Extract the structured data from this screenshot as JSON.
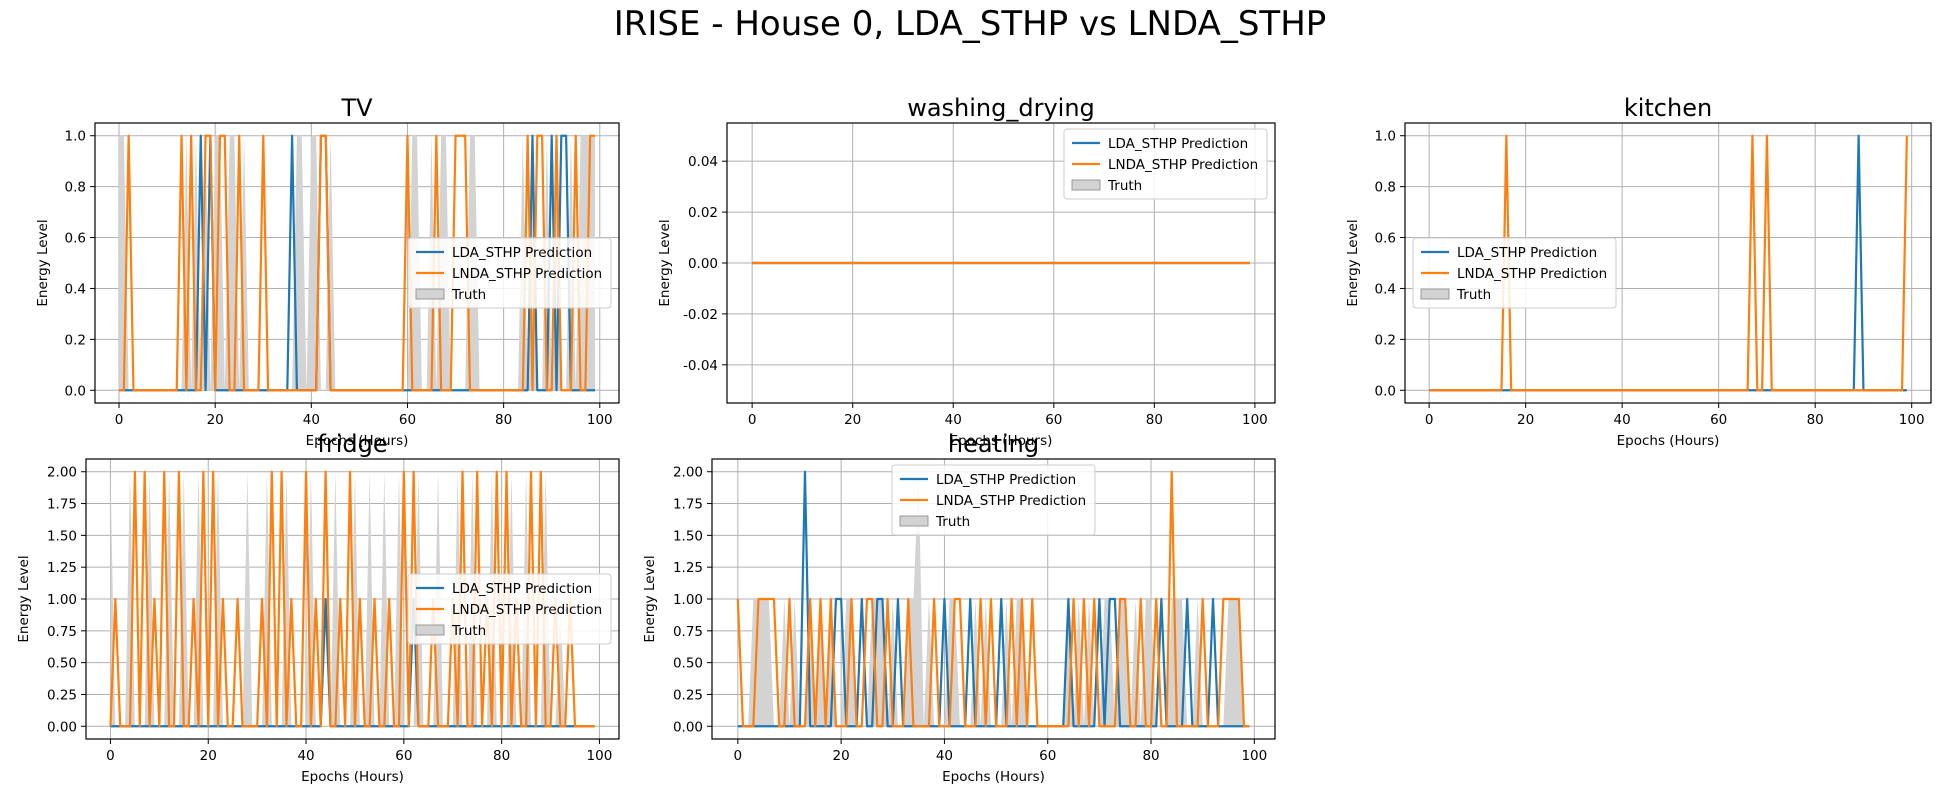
{
  "figure": {
    "title": "IRISE - House 0, LDA_STHP vs LNDA_STHP"
  },
  "colors": {
    "lda": "#1f77b4",
    "lnda": "#ff7f0e",
    "truth_fill": "#d3d3d3",
    "grid": "#b0b0b0"
  },
  "chart_data": [
    {
      "type": "line",
      "title": "TV",
      "xlabel": "Epochs (Hours)",
      "ylabel": "Energy Level",
      "xlim": [
        -5,
        104
      ],
      "ylim": [
        -0.05,
        1.05
      ],
      "xticks": [
        0,
        20,
        40,
        60,
        80,
        100
      ],
      "yticks": [
        0.0,
        0.2,
        0.4,
        0.6,
        0.8,
        1.0
      ],
      "grid": true,
      "legend": "center-right",
      "series": [
        {
          "name": "LDA_STHP Prediction",
          "kind": "line",
          "on": [
            17,
            19,
            36,
            42,
            43,
            86,
            90,
            92,
            93
          ]
        },
        {
          "name": "LNDA_STHP Prediction",
          "kind": "line",
          "on": [
            2,
            13,
            15,
            18,
            19,
            21,
            22,
            25,
            30,
            42,
            43,
            60,
            66,
            70,
            71,
            72,
            85,
            87,
            88,
            91,
            95,
            98,
            99
          ]
        },
        {
          "name": "Truth",
          "kind": "area",
          "on": [
            0,
            1,
            14,
            16,
            18,
            20,
            21,
            23,
            24,
            26,
            37,
            38,
            40,
            41,
            44,
            61,
            62,
            65,
            67,
            68,
            73,
            74,
            84,
            86,
            89,
            91,
            94,
            96,
            97,
            98,
            99
          ]
        }
      ]
    },
    {
      "type": "line",
      "title": "washing_drying",
      "xlabel": "Epochs (Hours)",
      "ylabel": "Energy Level",
      "xlim": [
        -5,
        104
      ],
      "ylim": [
        -0.055,
        0.055
      ],
      "xticks": [
        0,
        20,
        40,
        60,
        80,
        100
      ],
      "yticks": [
        -0.04,
        -0.02,
        0.0,
        0.02,
        0.04
      ],
      "grid": true,
      "legend": "upper-right",
      "series": [
        {
          "name": "LDA_STHP Prediction",
          "kind": "line",
          "on": []
        },
        {
          "name": "LNDA_STHP Prediction",
          "kind": "line",
          "on": []
        },
        {
          "name": "Truth",
          "kind": "area",
          "on": []
        }
      ]
    },
    {
      "type": "line",
      "title": "kitchen",
      "xlabel": "Epochs (Hours)",
      "ylabel": "Energy Level",
      "xlim": [
        -5,
        104
      ],
      "ylim": [
        -0.05,
        1.05
      ],
      "xticks": [
        0,
        20,
        40,
        60,
        80,
        100
      ],
      "yticks": [
        0.0,
        0.2,
        0.4,
        0.6,
        0.8,
        1.0
      ],
      "grid": true,
      "legend": "center-left",
      "series": [
        {
          "name": "LDA_STHP Prediction",
          "kind": "line",
          "on": [
            89
          ]
        },
        {
          "name": "LNDA_STHP Prediction",
          "kind": "line",
          "on": [
            16,
            67,
            70,
            99
          ]
        },
        {
          "name": "Truth",
          "kind": "area",
          "on": []
        }
      ]
    },
    {
      "type": "line",
      "title": "fridge",
      "xlabel": "Epochs (Hours)",
      "ylabel": "Energy Level",
      "xlim": [
        -5,
        104
      ],
      "ylim": [
        -0.1,
        2.1
      ],
      "xticks": [
        0,
        20,
        40,
        60,
        80,
        100
      ],
      "yticks": [
        0.0,
        0.25,
        0.5,
        0.75,
        1.0,
        1.25,
        1.5,
        1.75,
        2.0
      ],
      "grid": true,
      "legend": "center-right",
      "series": [
        {
          "name": "LDA_STHP Prediction",
          "kind": "line",
          "on": [
            44,
            62
          ]
        },
        {
          "name": "LNDA_STHP Prediction",
          "kind": "line",
          "points": [
            [
              1,
              1
            ],
            [
              5,
              2
            ],
            [
              7,
              2
            ],
            [
              9,
              1
            ],
            [
              11,
              2
            ],
            [
              14,
              2
            ],
            [
              17,
              1
            ],
            [
              19,
              2
            ],
            [
              21,
              2
            ],
            [
              23,
              1
            ],
            [
              26,
              1
            ],
            [
              31,
              1
            ],
            [
              33,
              2
            ],
            [
              35,
              2
            ],
            [
              37,
              1
            ],
            [
              40,
              2
            ],
            [
              42,
              1
            ],
            [
              44,
              2
            ],
            [
              47,
              1
            ],
            [
              49,
              2
            ],
            [
              51,
              1
            ],
            [
              54,
              1
            ],
            [
              57,
              1
            ],
            [
              60,
              2
            ],
            [
              62,
              2
            ],
            [
              66,
              1
            ],
            [
              70,
              1
            ],
            [
              72,
              2
            ],
            [
              75,
              2
            ],
            [
              77,
              1
            ],
            [
              79,
              2
            ],
            [
              81,
              2
            ],
            [
              83,
              1
            ],
            [
              86,
              2
            ],
            [
              88,
              2
            ],
            [
              91,
              1
            ],
            [
              94,
              1
            ]
          ]
        },
        {
          "name": "Truth",
          "kind": "area",
          "points": [
            [
              0,
              2
            ],
            [
              4,
              2
            ],
            [
              8,
              2
            ],
            [
              12,
              2
            ],
            [
              15,
              2
            ],
            [
              18,
              2
            ],
            [
              22,
              2
            ],
            [
              28,
              2
            ],
            [
              32,
              2
            ],
            [
              36,
              2
            ],
            [
              41,
              2
            ],
            [
              46,
              2
            ],
            [
              50,
              2
            ],
            [
              53,
              2
            ],
            [
              56,
              2
            ],
            [
              59,
              2
            ],
            [
              63,
              2
            ],
            [
              67,
              2
            ],
            [
              71,
              2
            ],
            [
              74,
              2
            ],
            [
              78,
              2
            ],
            [
              82,
              2
            ],
            [
              85,
              2
            ],
            [
              89,
              2
            ],
            [
              92,
              1
            ]
          ]
        }
      ]
    },
    {
      "type": "line",
      "title": "heating",
      "xlabel": "Epochs (Hours)",
      "ylabel": "Energy Level",
      "xlim": [
        -5,
        104
      ],
      "ylim": [
        -0.1,
        2.1
      ],
      "xticks": [
        0,
        20,
        40,
        60,
        80,
        100
      ],
      "yticks": [
        0.0,
        0.25,
        0.5,
        0.75,
        1.0,
        1.25,
        1.5,
        1.75,
        2.0
      ],
      "grid": true,
      "legend": "upper-center",
      "series": [
        {
          "name": "LDA_STHP Prediction",
          "kind": "line",
          "points": [
            [
              13,
              2
            ],
            [
              19,
              1
            ],
            [
              20,
              1
            ],
            [
              24,
              1
            ],
            [
              27,
              1
            ],
            [
              28,
              1
            ],
            [
              31,
              1
            ],
            [
              40,
              1
            ],
            [
              45,
              1
            ],
            [
              51,
              1
            ],
            [
              64,
              1
            ],
            [
              70,
              1
            ],
            [
              72,
              1
            ],
            [
              73,
              1
            ],
            [
              82,
              1
            ],
            [
              87,
              1
            ],
            [
              92,
              1
            ]
          ]
        },
        {
          "name": "LNDA_STHP Prediction",
          "kind": "line",
          "points": [
            [
              0,
              1
            ],
            [
              4,
              1
            ],
            [
              5,
              1
            ],
            [
              6,
              1
            ],
            [
              7,
              1
            ],
            [
              10,
              1
            ],
            [
              14,
              1
            ],
            [
              16,
              1
            ],
            [
              18,
              1
            ],
            [
              22,
              1
            ],
            [
              25,
              1
            ],
            [
              26,
              1
            ],
            [
              29,
              1
            ],
            [
              33,
              1
            ],
            [
              38,
              1
            ],
            [
              42,
              1
            ],
            [
              43,
              1
            ],
            [
              47,
              1
            ],
            [
              49,
              1
            ],
            [
              53,
              1
            ],
            [
              55,
              1
            ],
            [
              57,
              1
            ],
            [
              65,
              1
            ],
            [
              67,
              1
            ],
            [
              69,
              1
            ],
            [
              74,
              1
            ],
            [
              75,
              1
            ],
            [
              78,
              1
            ],
            [
              81,
              1
            ],
            [
              84,
              2
            ],
            [
              90,
              1
            ],
            [
              94,
              1
            ],
            [
              95,
              1
            ],
            [
              96,
              1
            ],
            [
              97,
              1
            ]
          ]
        },
        {
          "name": "Truth",
          "kind": "area",
          "points": [
            [
              3,
              1
            ],
            [
              4,
              1
            ],
            [
              5,
              1
            ],
            [
              6,
              1
            ],
            [
              9,
              1
            ],
            [
              11,
              1
            ],
            [
              14,
              1
            ],
            [
              16,
              1
            ],
            [
              18,
              1
            ],
            [
              21,
              1
            ],
            [
              22,
              1
            ],
            [
              26,
              1
            ],
            [
              27,
              1
            ],
            [
              28,
              1
            ],
            [
              30,
              1
            ],
            [
              33,
              1
            ],
            [
              34,
              1
            ],
            [
              35,
              2
            ],
            [
              37,
              1
            ],
            [
              41,
              1
            ],
            [
              42,
              1
            ],
            [
              46,
              1
            ],
            [
              48,
              1
            ],
            [
              52,
              1
            ],
            [
              54,
              1
            ],
            [
              55,
              1
            ],
            [
              64,
              1
            ],
            [
              66,
              1
            ],
            [
              68,
              1
            ],
            [
              71,
              1
            ],
            [
              72,
              1
            ],
            [
              74,
              1
            ],
            [
              75,
              1
            ],
            [
              77,
              1
            ],
            [
              79,
              1
            ],
            [
              80,
              1
            ],
            [
              84,
              1
            ],
            [
              85,
              1
            ],
            [
              86,
              1
            ],
            [
              89,
              1
            ],
            [
              95,
              1
            ],
            [
              96,
              1
            ],
            [
              97,
              1
            ]
          ]
        }
      ]
    }
  ]
}
